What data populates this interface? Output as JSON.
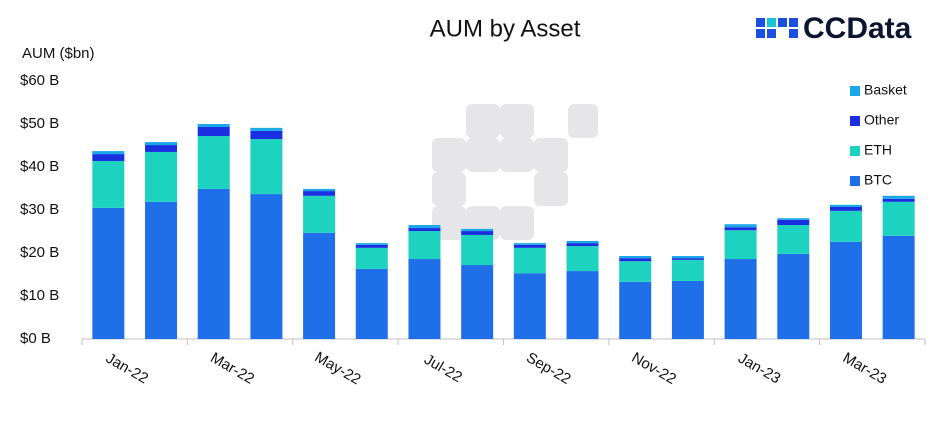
{
  "chart_data": {
    "type": "stacked-bar",
    "title": "AUM by Asset",
    "brand": "CCData",
    "y_label": "AUM ($bn)",
    "categories": [
      "Jan-22",
      null,
      "Mar-22",
      null,
      "May-22",
      null,
      "Jul-22",
      null,
      "Sep-22",
      null,
      "Nov-22",
      null,
      "Jan-23",
      null,
      "Mar-23",
      null
    ],
    "series": [
      {
        "name": "BTC",
        "color": "#1f6fe8",
        "values": [
          30.5,
          31.9,
          34.9,
          33.7,
          24.7,
          16.3,
          18.6,
          17.2,
          15.3,
          15.8,
          13.3,
          13.5,
          18.6,
          19.8,
          22.6,
          24.0
        ]
      },
      {
        "name": "ETH",
        "color": "#1dd3c0",
        "values": [
          10.9,
          11.6,
          12.3,
          12.8,
          8.6,
          4.9,
          6.5,
          7.0,
          5.9,
          5.8,
          4.8,
          4.9,
          6.7,
          6.7,
          7.2,
          7.9
        ]
      },
      {
        "name": "Other",
        "color": "#1a2fe0",
        "values": [
          1.6,
          1.6,
          2.1,
          1.9,
          1.1,
          0.7,
          0.7,
          0.9,
          0.7,
          0.7,
          0.7,
          0.4,
          0.7,
          1.2,
          0.9,
          0.7
        ]
      },
      {
        "name": "Basket",
        "color": "#1aa7e8",
        "values": [
          0.7,
          0.7,
          0.7,
          0.7,
          0.5,
          0.4,
          0.7,
          0.5,
          0.4,
          0.5,
          0.5,
          0.5,
          0.7,
          0.4,
          0.5,
          0.7
        ]
      }
    ],
    "ylim": [
      0,
      60
    ],
    "yticks": [
      {
        "value": 0,
        "label": "$0 B"
      },
      {
        "value": 10,
        "label": "$10 B"
      },
      {
        "value": 20,
        "label": "$20 B"
      },
      {
        "value": 30,
        "label": "$30 B"
      },
      {
        "value": 40,
        "label": "$40 B"
      },
      {
        "value": 50,
        "label": "$50 B"
      },
      {
        "value": 60,
        "label": "$60 B"
      }
    ],
    "legend_position": "right"
  }
}
